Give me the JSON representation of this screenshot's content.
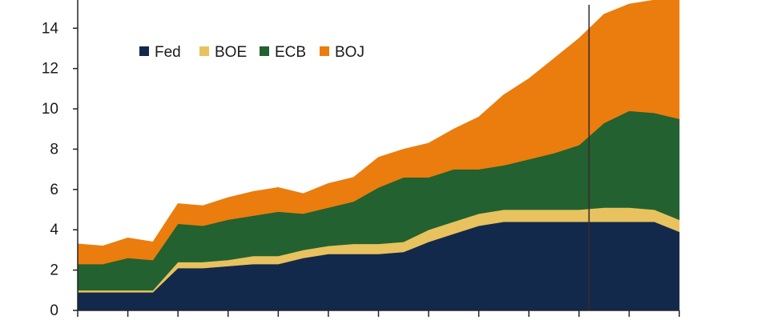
{
  "chart_data": {
    "type": "area",
    "stacked": true,
    "title": "",
    "xlabel": "",
    "ylabel": "",
    "ylim": [
      0,
      15.4
    ],
    "yticks": [
      "0",
      "2",
      "4",
      "6",
      "8",
      "10",
      "12",
      "14"
    ],
    "x": [
      0,
      0.5,
      1,
      1.5,
      2,
      2.5,
      3,
      3.5,
      4,
      4.5,
      5,
      5.5,
      6,
      6.5,
      7,
      7.5,
      8,
      8.5,
      9,
      9.5,
      10,
      10.5,
      11,
      11.5,
      12
    ],
    "xlim": [
      0,
      12
    ],
    "x_tick_count": 12,
    "vertical_marker_x": 10.2,
    "legend_position": "top-left",
    "series": [
      {
        "name": "Fed",
        "color": "#13294b",
        "values": [
          0.9,
          0.9,
          0.9,
          0.9,
          2.1,
          2.1,
          2.2,
          2.3,
          2.3,
          2.6,
          2.8,
          2.8,
          2.8,
          2.9,
          3.4,
          3.8,
          4.2,
          4.4,
          4.4,
          4.4,
          4.4,
          4.4,
          4.4,
          4.4,
          3.9
        ]
      },
      {
        "name": "BOE",
        "color": "#e8c25e",
        "values": [
          0.1,
          0.1,
          0.1,
          0.1,
          0.3,
          0.3,
          0.3,
          0.4,
          0.4,
          0.4,
          0.4,
          0.5,
          0.5,
          0.5,
          0.6,
          0.6,
          0.6,
          0.6,
          0.6,
          0.6,
          0.6,
          0.7,
          0.7,
          0.6,
          0.6
        ]
      },
      {
        "name": "ECB",
        "color": "#236130",
        "values": [
          1.3,
          1.3,
          1.6,
          1.5,
          1.9,
          1.8,
          2.0,
          2.0,
          2.2,
          1.8,
          1.9,
          2.1,
          2.8,
          3.2,
          2.6,
          2.6,
          2.2,
          2.2,
          2.5,
          2.8,
          3.2,
          4.2,
          4.8,
          4.8,
          5.0
        ]
      },
      {
        "name": "BOJ",
        "color": "#ea7d0d",
        "values": [
          1.0,
          0.9,
          1.0,
          0.9,
          1.0,
          1.0,
          1.1,
          1.2,
          1.2,
          1.0,
          1.2,
          1.2,
          1.5,
          1.4,
          1.7,
          2.0,
          2.6,
          3.5,
          4.0,
          4.7,
          5.3,
          5.4,
          5.3,
          5.6,
          6.0
        ]
      }
    ]
  }
}
